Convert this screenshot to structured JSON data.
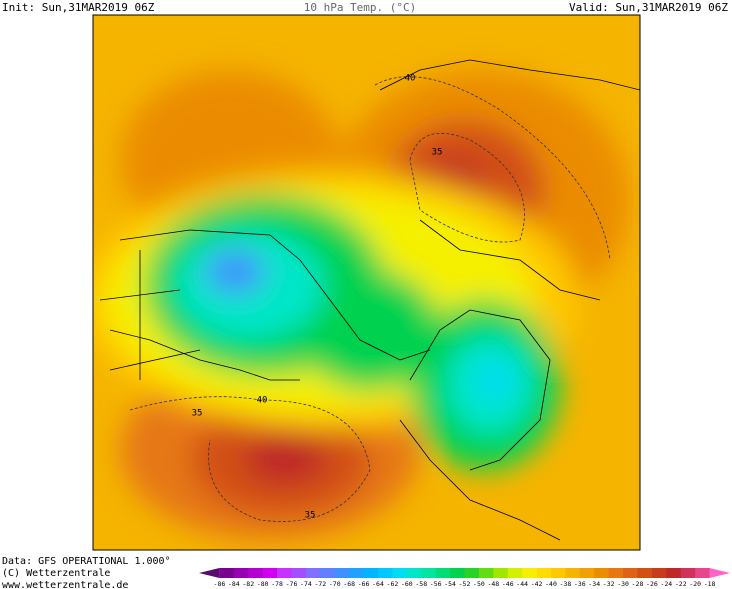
{
  "header": {
    "init": "Init: Sun,31MAR2019 06Z",
    "title": "10 hPa Temp. (°C)",
    "valid": "Valid: Sun,31MAR2019 06Z"
  },
  "contour_labels": [
    "40",
    "35",
    "35",
    "40",
    "35"
  ],
  "footer": {
    "data": "Data: GFS OPERATIONAL 1.000°",
    "copyright": "(C) Wetterzentrale",
    "url": "www.wetterzentrale.de"
  },
  "colorbar": {
    "labels": [
      -86,
      -84,
      -82,
      -80,
      -78,
      -76,
      -74,
      -72,
      -70,
      -68,
      -66,
      -64,
      -62,
      -60,
      -58,
      -56,
      -54,
      -52,
      -50,
      -48,
      -46,
      -44,
      -42,
      -40,
      -38,
      -36,
      -34,
      -32,
      -30,
      -28,
      -26,
      -24,
      -22,
      -20,
      -18
    ],
    "colors": [
      "#5a0a6e",
      "#7a0090",
      "#9600b0",
      "#b400d0",
      "#d200f0",
      "#c832ff",
      "#a050ff",
      "#8070ff",
      "#6080ff",
      "#4090ff",
      "#20a0ff",
      "#00b4ff",
      "#00c8ff",
      "#00dcf0",
      "#00e6c8",
      "#00e6a0",
      "#00dc78",
      "#00d250",
      "#28d228",
      "#64dc14",
      "#a0e600",
      "#d2f000",
      "#f5f000",
      "#ffdc00",
      "#ffc800",
      "#f5b400",
      "#f0a000",
      "#eb8c00",
      "#e67814",
      "#dc6414",
      "#d25014",
      "#c83c1e",
      "#be2828",
      "#d2325a",
      "#e6468c",
      "#ff64c8"
    ]
  }
}
